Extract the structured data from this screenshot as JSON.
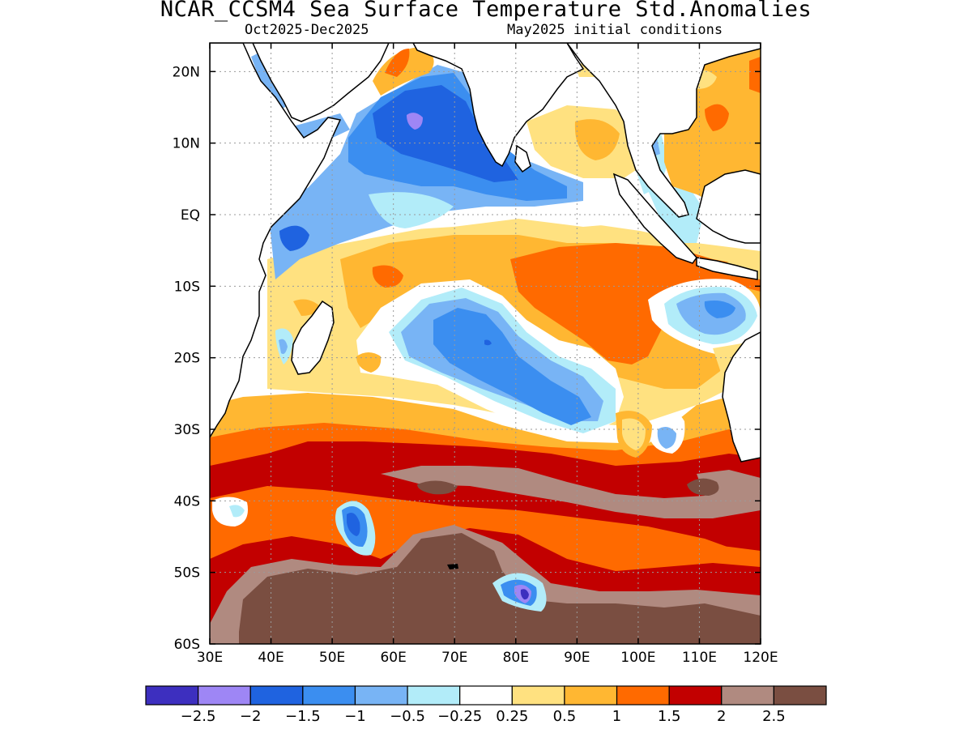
{
  "title": "NCAR_CCSM4 Sea Surface Temperature Std.Anomalies",
  "subtitle_left": "Oct2025-Dec2025",
  "subtitle_right": "May2025 initial conditions",
  "map": {
    "lon_range": [
      30,
      120
    ],
    "lat_range": [
      -60,
      24
    ],
    "lon_ticks": [
      "30E",
      "40E",
      "50E",
      "60E",
      "70E",
      "80E",
      "90E",
      "100E",
      "110E",
      "120E"
    ],
    "lat_ticks": [
      "20N",
      "10N",
      "EQ",
      "10S",
      "20S",
      "30S",
      "40S",
      "50S",
      "60S"
    ],
    "grid": true
  },
  "colorbar": {
    "colors": [
      "#3d2fbf",
      "#9e86f5",
      "#1f63e0",
      "#3b8ef0",
      "#78b4f5",
      "#b2ecf9",
      "#ffffff",
      "#ffe180",
      "#ffb732",
      "#ff6a00",
      "#c20000",
      "#b08a80",
      "#7a4e41"
    ],
    "labels": [
      "-2.5",
      "-2",
      "-1.5",
      "-1",
      "-0.5",
      "-0.25",
      "0.25",
      "0.5",
      "1",
      "1.5",
      "2",
      "2.5"
    ]
  }
}
